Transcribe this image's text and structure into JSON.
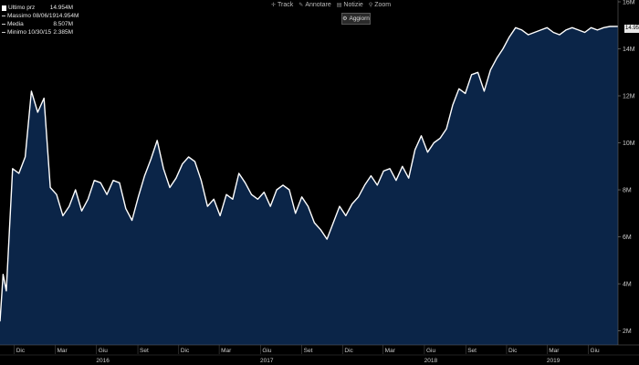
{
  "legend": {
    "items": [
      {
        "label": "Ultimo prz",
        "value": "14.954M",
        "marker": "box"
      },
      {
        "label": "Massimo 08/06/19",
        "value": "14.954M",
        "marker": "dot"
      },
      {
        "label": "Media",
        "value": "8.507M",
        "marker": "dot"
      },
      {
        "label": "Minimo 10/30/15",
        "value": "2.385M",
        "marker": "dot"
      }
    ]
  },
  "toolbar": {
    "items": [
      {
        "label": "Track",
        "icon": "plus-icon"
      },
      {
        "label": "Annotare",
        "icon": "pencil-icon"
      },
      {
        "label": "Notizie",
        "icon": "news-icon"
      },
      {
        "label": "Zoom",
        "icon": "magnifier-icon"
      }
    ],
    "update_label": "Aggiorn"
  },
  "last_price_tag": "14.954M",
  "colors": {
    "area_fill": "#0b2548",
    "line": "#ffffff",
    "background": "#000000",
    "axis_text": "#cccccc"
  },
  "chart_data": {
    "type": "area",
    "title": "",
    "xlabel": "",
    "ylabel": "",
    "ylim": [
      1.4,
      16
    ],
    "y_ticks": [
      2,
      4,
      6,
      8,
      10,
      12,
      14,
      16
    ],
    "y_tick_labels": [
      "2M",
      "4M",
      "6M",
      "8M",
      "10M",
      "12M",
      "14M",
      "16M"
    ],
    "grid": false,
    "legend_position": "top-left",
    "x_range": [
      "2015-10-30",
      "2019-08-06"
    ],
    "x_month_ticks": [
      {
        "label": "Dic",
        "date": "2015-12-01"
      },
      {
        "label": "Mar",
        "date": "2016-03-01"
      },
      {
        "label": "Giu",
        "date": "2016-06-01"
      },
      {
        "label": "Set",
        "date": "2016-09-01"
      },
      {
        "label": "Dic",
        "date": "2016-12-01"
      },
      {
        "label": "Mar",
        "date": "2017-03-01"
      },
      {
        "label": "Giu",
        "date": "2017-06-01"
      },
      {
        "label": "Set",
        "date": "2017-09-01"
      },
      {
        "label": "Dic",
        "date": "2017-12-01"
      },
      {
        "label": "Mar",
        "date": "2018-03-01"
      },
      {
        "label": "Giu",
        "date": "2018-06-01"
      },
      {
        "label": "Set",
        "date": "2018-09-01"
      },
      {
        "label": "Dic",
        "date": "2018-12-01"
      },
      {
        "label": "Mar",
        "date": "2019-03-01"
      },
      {
        "label": "Giu",
        "date": "2019-06-01"
      }
    ],
    "x_year_ticks": [
      {
        "label": "2016",
        "date": "2016-06-15"
      },
      {
        "label": "2017",
        "date": "2017-06-15"
      },
      {
        "label": "2018",
        "date": "2018-06-15"
      },
      {
        "label": "2019",
        "date": "2019-03-15"
      }
    ],
    "series": [
      {
        "x": [
          "2015-10-30",
          "2015-11-06",
          "2015-11-13",
          "2015-11-27",
          "2015-12-11",
          "2015-12-25",
          "2016-01-08",
          "2016-01-22",
          "2016-02-05",
          "2016-02-19",
          "2016-03-04",
          "2016-03-18",
          "2016-04-01",
          "2016-04-15",
          "2016-04-29",
          "2016-05-13",
          "2016-05-27",
          "2016-06-10",
          "2016-06-24",
          "2016-07-08",
          "2016-07-22",
          "2016-08-05",
          "2016-08-19",
          "2016-09-02",
          "2016-09-16",
          "2016-09-30",
          "2016-10-14",
          "2016-10-28",
          "2016-11-11",
          "2016-11-25",
          "2016-12-09",
          "2016-12-23",
          "2017-01-06",
          "2017-01-20",
          "2017-02-03",
          "2017-02-17",
          "2017-03-03",
          "2017-03-17",
          "2017-03-31",
          "2017-04-14",
          "2017-04-28",
          "2017-05-12",
          "2017-05-26",
          "2017-06-09",
          "2017-06-23",
          "2017-07-07",
          "2017-07-21",
          "2017-08-04",
          "2017-08-18",
          "2017-09-01",
          "2017-09-15",
          "2017-09-29",
          "2017-10-13",
          "2017-10-27",
          "2017-11-10",
          "2017-11-24",
          "2017-12-08",
          "2017-12-22",
          "2018-01-05",
          "2018-01-19",
          "2018-02-02",
          "2018-02-16",
          "2018-03-02",
          "2018-03-16",
          "2018-03-30",
          "2018-04-13",
          "2018-04-27",
          "2018-05-11",
          "2018-05-25",
          "2018-06-08",
          "2018-06-22",
          "2018-07-06",
          "2018-07-20",
          "2018-08-03",
          "2018-08-17",
          "2018-08-31",
          "2018-09-14",
          "2018-09-28",
          "2018-10-12",
          "2018-10-26",
          "2018-11-09",
          "2018-11-23",
          "2018-12-07",
          "2018-12-21",
          "2019-01-04",
          "2019-01-18",
          "2019-02-01",
          "2019-02-15",
          "2019-03-01",
          "2019-03-15",
          "2019-03-29",
          "2019-04-12",
          "2019-04-26",
          "2019-05-10",
          "2019-05-24",
          "2019-06-07",
          "2019-06-21",
          "2019-07-05",
          "2019-07-19",
          "2019-08-06"
        ],
        "values": [
          2.4,
          4.4,
          3.7,
          8.9,
          8.7,
          9.4,
          12.2,
          11.3,
          11.9,
          8.1,
          7.8,
          6.9,
          7.3,
          8.0,
          7.1,
          7.6,
          8.4,
          8.3,
          7.8,
          8.4,
          8.3,
          7.2,
          6.7,
          7.7,
          8.6,
          9.3,
          10.1,
          8.9,
          8.1,
          8.5,
          9.1,
          9.4,
          9.2,
          8.4,
          7.3,
          7.6,
          6.9,
          7.8,
          7.6,
          8.7,
          8.3,
          7.8,
          7.6,
          7.9,
          7.3,
          8.0,
          8.2,
          8.0,
          7.0,
          7.7,
          7.3,
          6.6,
          6.3,
          5.9,
          6.6,
          7.3,
          6.9,
          7.4,
          7.7,
          8.2,
          8.6,
          8.2,
          8.8,
          8.9,
          8.4,
          9.0,
          8.5,
          9.7,
          10.3,
          9.6,
          10.0,
          10.2,
          10.6,
          11.6,
          12.3,
          12.1,
          12.9,
          13.0,
          12.2,
          13.1,
          13.6,
          14.0,
          14.5,
          14.9,
          14.8,
          14.6,
          14.7,
          14.8,
          14.9,
          14.7,
          14.6,
          14.8,
          14.9,
          14.8,
          14.7,
          14.9,
          14.8,
          14.9,
          14.95,
          14.954
        ]
      }
    ]
  }
}
